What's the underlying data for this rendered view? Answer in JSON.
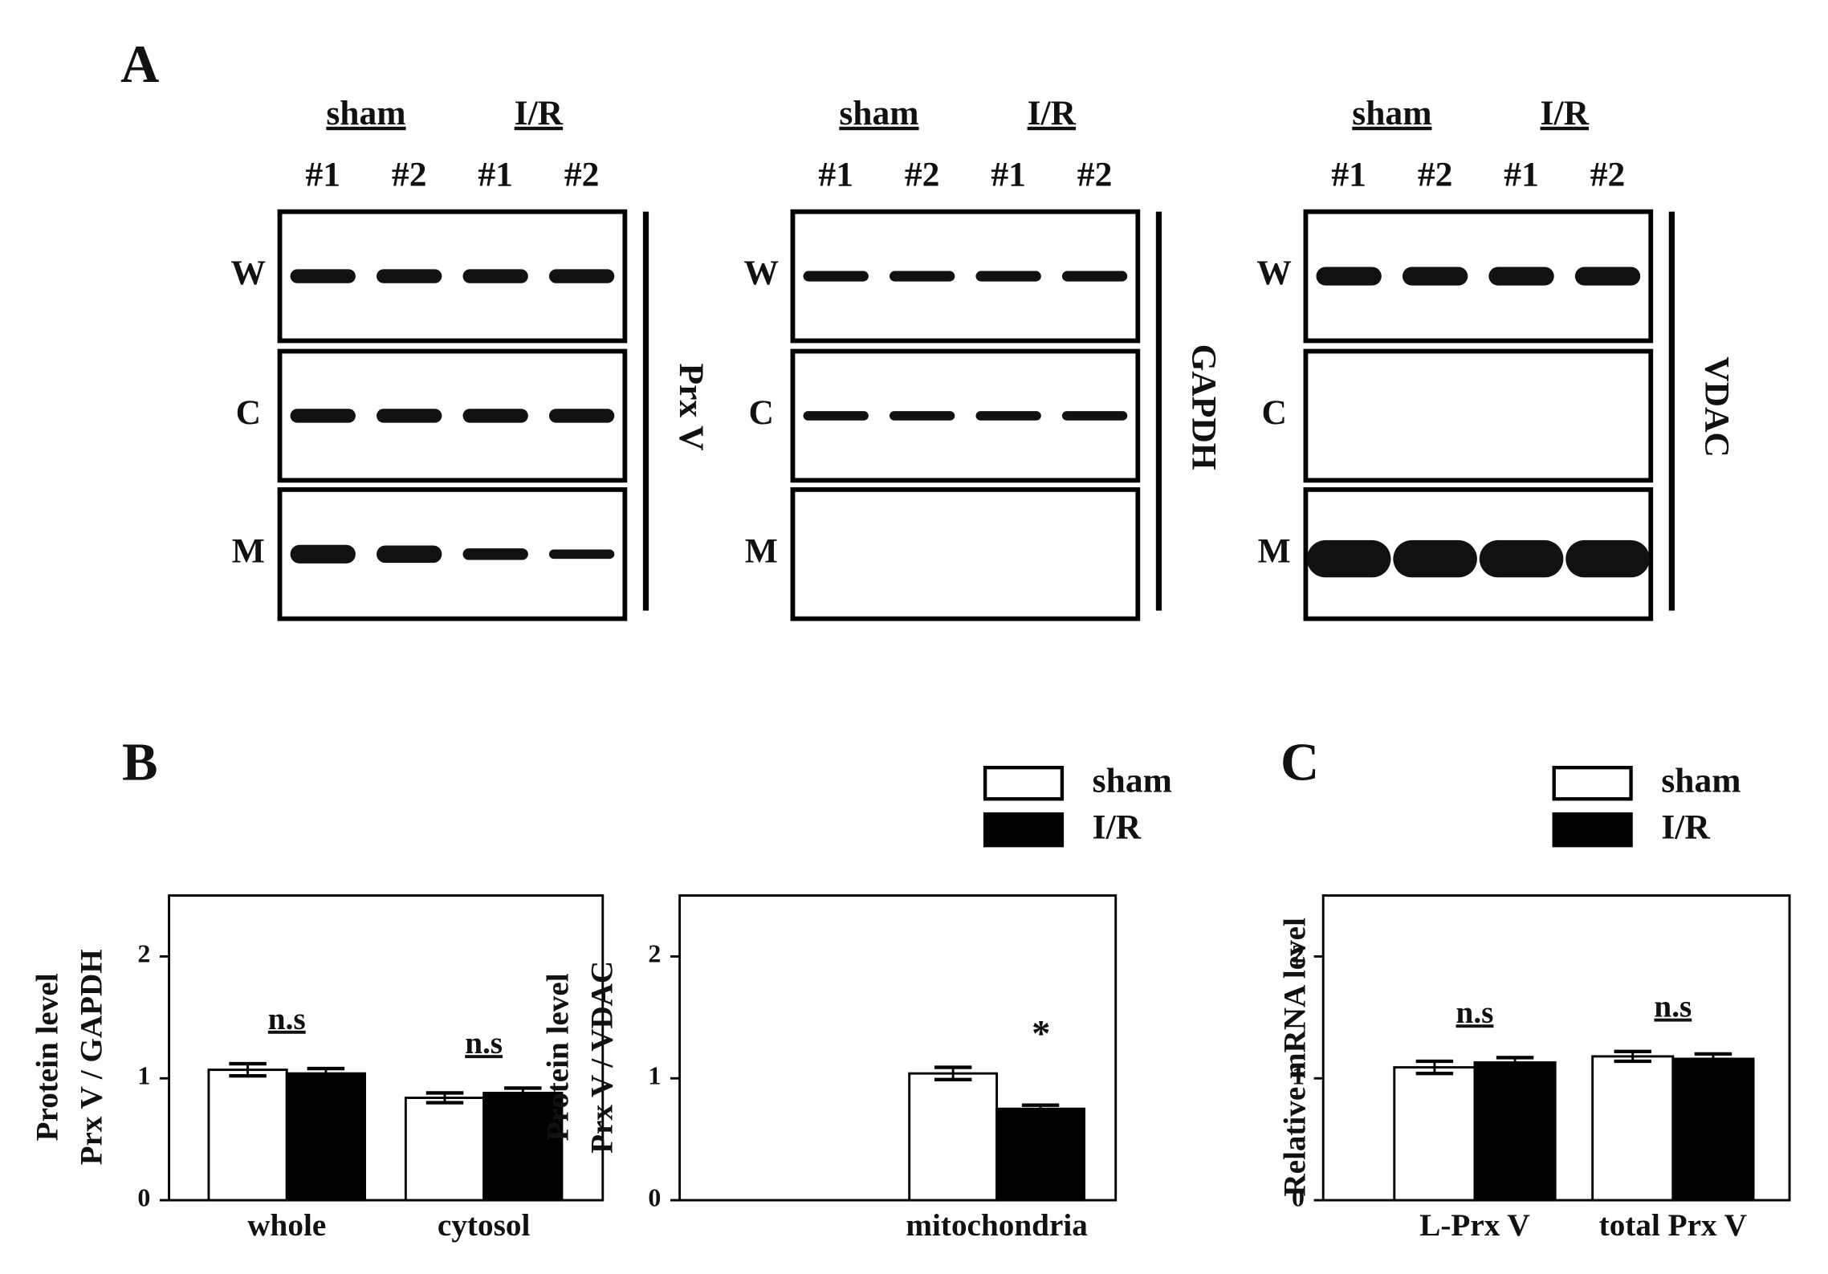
{
  "panel_labels": [
    "A",
    "B",
    "C"
  ],
  "blots": [
    {
      "group_labels": [
        "sham",
        "I/R"
      ],
      "lane_labels": [
        "#1",
        "#2",
        "#1",
        "#2"
      ],
      "row_labels": [
        "W",
        "C",
        "M"
      ],
      "protein": "Prx V"
    },
    {
      "group_labels": [
        "sham",
        "I/R"
      ],
      "lane_labels": [
        "#1",
        "#2",
        "#1",
        "#2"
      ],
      "row_labels": [
        "W",
        "C",
        "M"
      ],
      "protein": "GAPDH"
    },
    {
      "group_labels": [
        "sham",
        "I/R"
      ],
      "lane_labels": [
        "#1",
        "#2",
        "#1",
        "#2"
      ],
      "row_labels": [
        "W",
        "C",
        "M"
      ],
      "protein": "VDAC"
    }
  ],
  "chart_data": [
    {
      "type": "bar",
      "y_label": [
        "Protein level",
        "Prx V / GAPDH"
      ],
      "categories": [
        "whole",
        "cytosol"
      ],
      "series": [
        {
          "name": "sham",
          "color": "#ffffff",
          "values": [
            1.07,
            0.84
          ],
          "errors": [
            0.05,
            0.04
          ]
        },
        {
          "name": "I/R",
          "color": "#000000",
          "values": [
            1.04,
            0.88
          ],
          "errors": [
            0.04,
            0.04
          ]
        }
      ],
      "annotations": [
        "n.s",
        "n.s"
      ],
      "ylim": [
        0,
        2.5
      ],
      "yticks": [
        0,
        1,
        2
      ]
    },
    {
      "type": "bar",
      "y_label": [
        "Protein level",
        "Prx V / VDAC"
      ],
      "categories": [
        "mitochondria"
      ],
      "series": [
        {
          "name": "sham",
          "color": "#ffffff",
          "values": [
            1.04
          ],
          "errors": [
            0.05
          ]
        },
        {
          "name": "I/R",
          "color": "#000000",
          "values": [
            0.75
          ],
          "errors": [
            0.03
          ]
        }
      ],
      "annotations": [
        "*"
      ],
      "ylim": [
        0,
        2.5
      ],
      "yticks": [
        0,
        1,
        2
      ]
    },
    {
      "type": "bar",
      "y_label": [
        "Relative mRNA level"
      ],
      "categories": [
        "L-Prx V",
        "total  Prx V"
      ],
      "series": [
        {
          "name": "sham",
          "color": "#ffffff",
          "values": [
            1.09,
            1.18
          ],
          "errors": [
            0.05,
            0.04
          ]
        },
        {
          "name": "I/R",
          "color": "#000000",
          "values": [
            1.13,
            1.16
          ],
          "errors": [
            0.04,
            0.04
          ]
        }
      ],
      "annotations": [
        "n.s",
        "n.s"
      ],
      "ylim": [
        0,
        2.5
      ],
      "yticks": [
        0,
        1,
        2
      ]
    }
  ]
}
